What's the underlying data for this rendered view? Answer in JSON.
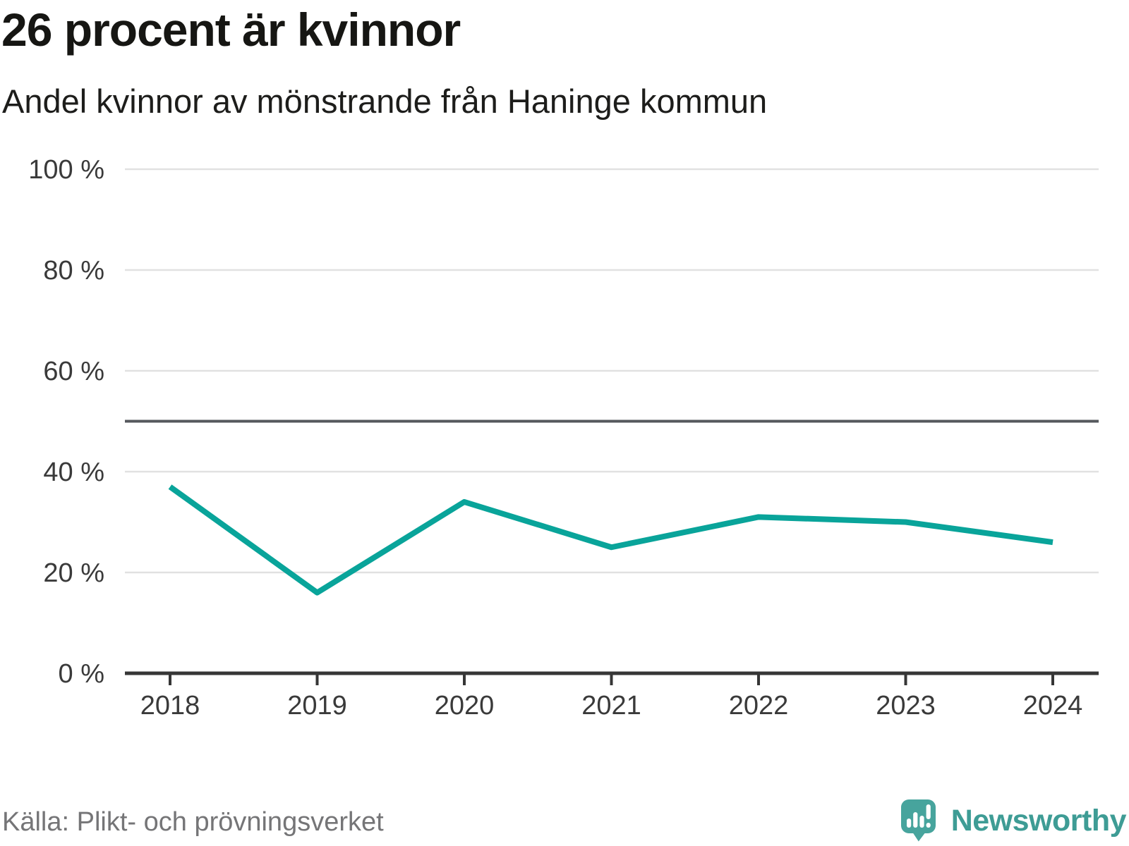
{
  "header": {
    "title": "26 procent är kvinnor",
    "subtitle": "Andel kvinnor av mönstrande från Haninge kommun"
  },
  "footer": {
    "source": "Källa: Plikt- och prövningsverket",
    "brand": "Newsworthy"
  },
  "colors": {
    "line": "#09a49a",
    "grid": "#e1e1e1",
    "refline": "#55585d",
    "axis": "#363636",
    "tick_label": "#3a3a3a",
    "logo_bubble": "#47a49d",
    "logo_text": "#3e9c95",
    "source_text": "#757577"
  },
  "chart_data": {
    "type": "line",
    "x": [
      2018,
      2019,
      2020,
      2021,
      2022,
      2023,
      2024
    ],
    "series": [
      {
        "name": "Andel kvinnor av mönstrande",
        "values": [
          37,
          16,
          34,
          25,
          31,
          30,
          26
        ]
      }
    ],
    "title": "26 procent är kvinnor",
    "subtitle": "Andel kvinnor av mönstrande från Haninge kommun",
    "xlabel": "",
    "ylabel": "",
    "unit": "%",
    "ylim": [
      0,
      100
    ],
    "yticks": [
      0,
      20,
      40,
      60,
      80,
      100
    ],
    "ytick_format": "{v} %",
    "reference_line": 50,
    "grid": "horizontal",
    "legend": "none"
  }
}
